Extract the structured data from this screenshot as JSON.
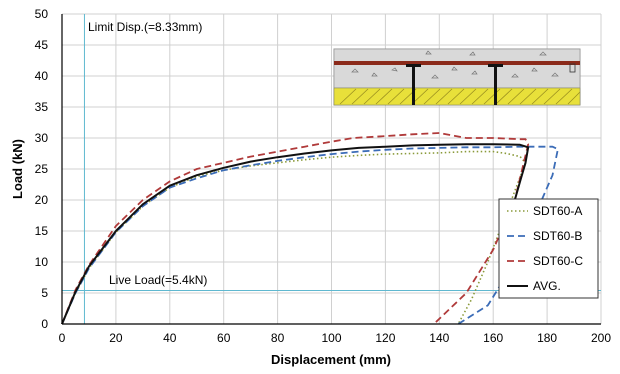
{
  "chart_data": {
    "type": "line",
    "title": "",
    "xlabel": "Displacement (mm)",
    "ylabel": "Load (kN)",
    "xlim": [
      0,
      200
    ],
    "ylim": [
      0,
      50
    ],
    "x_ticks": [
      0,
      20,
      40,
      60,
      80,
      100,
      120,
      140,
      160,
      180,
      200
    ],
    "y_ticks": [
      0,
      5,
      10,
      15,
      20,
      25,
      30,
      35,
      40,
      45,
      50
    ],
    "grid": true,
    "legend_position": "bottom-right",
    "annotations": [
      {
        "text": "Limit Disp.(=8.33mm)",
        "axis": "x",
        "value": 8.33
      },
      {
        "text": "Live Load(=5.4kN)",
        "axis": "y",
        "value": 5.4
      }
    ],
    "series": [
      {
        "name": "SDT60-A",
        "style": "dotted",
        "color": "#8a9a3a",
        "points": [
          [
            0,
            0
          ],
          [
            5,
            5
          ],
          [
            10,
            9
          ],
          [
            20,
            14.8
          ],
          [
            30,
            19
          ],
          [
            40,
            22
          ],
          [
            50,
            23.8
          ],
          [
            60,
            24.8
          ],
          [
            70,
            25.5
          ],
          [
            80,
            26
          ],
          [
            90,
            26.5
          ],
          [
            100,
            26.9
          ],
          [
            110,
            27.2
          ],
          [
            120,
            27.4
          ],
          [
            130,
            27.5
          ],
          [
            140,
            27.6
          ],
          [
            150,
            27.8
          ],
          [
            160,
            27.8
          ],
          [
            165,
            27.5
          ],
          [
            170,
            27
          ],
          [
            172,
            26
          ],
          [
            165,
            18
          ],
          [
            158,
            10
          ],
          [
            152,
            4
          ],
          [
            147,
            0
          ]
        ]
      },
      {
        "name": "SDT60-B",
        "style": "dashed",
        "color": "#3b6cb7",
        "points": [
          [
            0,
            0
          ],
          [
            5,
            5
          ],
          [
            10,
            9
          ],
          [
            20,
            14.8
          ],
          [
            30,
            19
          ],
          [
            40,
            22
          ],
          [
            50,
            23.5
          ],
          [
            60,
            24.8
          ],
          [
            70,
            25.6
          ],
          [
            80,
            26.3
          ],
          [
            90,
            26.9
          ],
          [
            100,
            27.4
          ],
          [
            110,
            27.8
          ],
          [
            120,
            28.1
          ],
          [
            130,
            28.3
          ],
          [
            140,
            28.4
          ],
          [
            150,
            28.5
          ],
          [
            160,
            28.5
          ],
          [
            170,
            28.6
          ],
          [
            176,
            28.6
          ],
          [
            182,
            28.6
          ],
          [
            184,
            28.2
          ],
          [
            182,
            24
          ],
          [
            176,
            18
          ],
          [
            168,
            10
          ],
          [
            158,
            3
          ],
          [
            147,
            0
          ]
        ]
      },
      {
        "name": "SDT60-C",
        "style": "dashed",
        "color": "#b03a3a",
        "points": [
          [
            0,
            0
          ],
          [
            5,
            5.5
          ],
          [
            10,
            9.5
          ],
          [
            20,
            15.8
          ],
          [
            30,
            20
          ],
          [
            40,
            23
          ],
          [
            50,
            25
          ],
          [
            60,
            26
          ],
          [
            70,
            27
          ],
          [
            80,
            27.8
          ],
          [
            90,
            28.6
          ],
          [
            100,
            29.4
          ],
          [
            108,
            30
          ],
          [
            120,
            30.3
          ],
          [
            130,
            30.6
          ],
          [
            140,
            30.8
          ],
          [
            150,
            30
          ],
          [
            160,
            30
          ],
          [
            170,
            29.8
          ],
          [
            172,
            29.8
          ],
          [
            173,
            29
          ],
          [
            168,
            20
          ],
          [
            160,
            12
          ],
          [
            150,
            5
          ],
          [
            138,
            0
          ]
        ]
      },
      {
        "name": "AVG.",
        "style": "solid",
        "color": "#111111",
        "points": [
          [
            0,
            0
          ],
          [
            5,
            5.2
          ],
          [
            10,
            9.3
          ],
          [
            20,
            15
          ],
          [
            30,
            19.3
          ],
          [
            40,
            22.3
          ],
          [
            50,
            24
          ],
          [
            60,
            25.2
          ],
          [
            70,
            26.2
          ],
          [
            80,
            26.9
          ],
          [
            90,
            27.5
          ],
          [
            100,
            28
          ],
          [
            110,
            28.4
          ],
          [
            120,
            28.6
          ],
          [
            130,
            28.8
          ],
          [
            140,
            28.9
          ],
          [
            150,
            29
          ],
          [
            160,
            29
          ],
          [
            170,
            28.9
          ],
          [
            173,
            28.5
          ],
          [
            172,
            26
          ],
          [
            170,
            23
          ],
          [
            168,
            20
          ]
        ]
      }
    ]
  }
}
